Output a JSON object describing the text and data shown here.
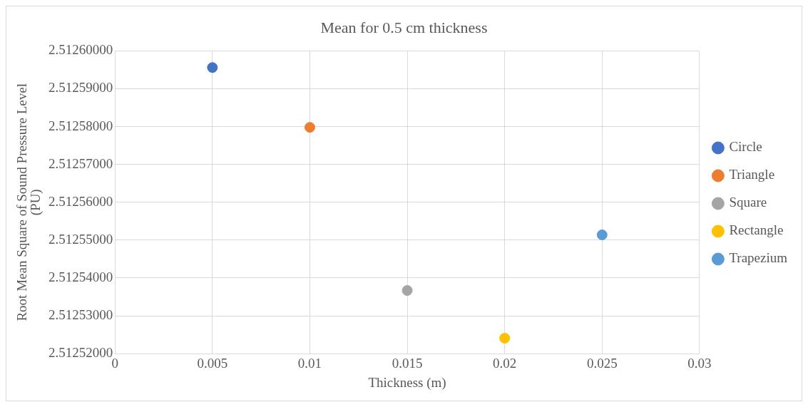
{
  "chart_data": {
    "type": "scatter",
    "title": "Mean for 0.5 cm thickness",
    "xlabel": "Thickness (m)",
    "ylabel": "Root Mean Square of Sound Pressure Level (PU)",
    "xlim": [
      0,
      0.03
    ],
    "xticks": [
      0,
      0.005,
      0.01,
      0.015,
      0.02,
      0.025,
      0.03
    ],
    "ylim": [
      2.51252,
      2.5126
    ],
    "yticks": [
      {
        "value": 2.51252,
        "label": "2.51252000"
      },
      {
        "value": 2.51253,
        "label": "2.51253000"
      },
      {
        "value": 2.51254,
        "label": "2.51254000"
      },
      {
        "value": 2.51255,
        "label": "2.51255000"
      },
      {
        "value": 2.51256,
        "label": "2.51256000"
      },
      {
        "value": 2.51257,
        "label": "2.51257000"
      },
      {
        "value": 2.51258,
        "label": "2.51258000"
      },
      {
        "value": 2.51259,
        "label": "2.51259000"
      },
      {
        "value": 2.5126,
        "label": "2.51260000"
      }
    ],
    "grid": true,
    "legend": "right",
    "marker": "circle",
    "series": [
      {
        "name": "Circle",
        "color": "#4472c4",
        "x": [
          0.005
        ],
        "values": [
          2.5125956
        ]
      },
      {
        "name": "Triangle",
        "color": "#ed7d31",
        "x": [
          0.01
        ],
        "values": [
          2.5125798
        ]
      },
      {
        "name": "Square",
        "color": "#a5a5a5",
        "x": [
          0.015
        ],
        "values": [
          2.5125367
        ]
      },
      {
        "name": "Rectangle",
        "color": "#ffc000",
        "x": [
          0.02
        ],
        "values": [
          2.5125241
        ]
      },
      {
        "name": "Trapezium",
        "color": "#5b9bd5",
        "x": [
          0.025
        ],
        "values": [
          2.5125514
        ]
      }
    ]
  }
}
